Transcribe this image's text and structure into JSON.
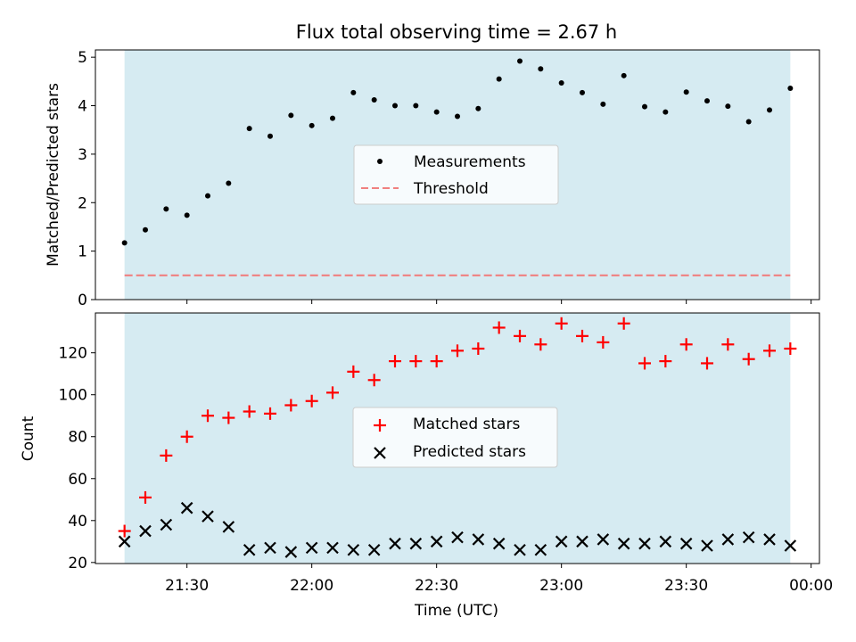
{
  "chart_data": [
    {
      "type": "scatter",
      "title": "Flux total observing time = 2.67 h",
      "ylabel": "Matched/Predicted stars",
      "xlim": [
        "21:08",
        "00:02"
      ],
      "ylim": [
        0,
        5.15
      ],
      "yticks": [
        "0",
        "1",
        "2",
        "3",
        "4",
        "5"
      ],
      "shaded_span": [
        "21:15",
        "23:55"
      ],
      "legend": {
        "position": "center",
        "entries": [
          "Measurements",
          "Threshold"
        ]
      },
      "series": [
        {
          "name": "Measurements",
          "marker": "dot",
          "color": "#000000",
          "x": [
            "21:15",
            "21:20",
            "21:25",
            "21:30",
            "21:35",
            "21:40",
            "21:45",
            "21:50",
            "21:55",
            "22:00",
            "22:05",
            "22:10",
            "22:15",
            "22:20",
            "22:25",
            "22:30",
            "22:35",
            "22:40",
            "22:45",
            "22:50",
            "22:55",
            "23:00",
            "23:05",
            "23:10",
            "23:15",
            "23:20",
            "23:25",
            "23:30",
            "23:35",
            "23:40",
            "23:45",
            "23:50",
            "23:55"
          ],
          "y": [
            1.17,
            1.44,
            1.87,
            1.74,
            2.14,
            2.4,
            3.53,
            3.37,
            3.8,
            3.59,
            3.74,
            4.27,
            4.12,
            4.0,
            4.0,
            3.87,
            3.78,
            3.94,
            4.55,
            4.92,
            4.76,
            4.47,
            4.27,
            4.03,
            4.62,
            3.98,
            3.87,
            4.28,
            4.1,
            3.99,
            3.67,
            3.91,
            4.36
          ]
        },
        {
          "name": "Threshold",
          "type": "line",
          "style": "dashed",
          "color": "#f08080",
          "x": [
            "21:15",
            "23:55"
          ],
          "y": [
            0.5,
            0.5
          ]
        }
      ]
    },
    {
      "type": "scatter",
      "xlabel": "Time (UTC)",
      "ylabel": "Count",
      "xlim": [
        "21:08",
        "00:02"
      ],
      "ylim": [
        19.5,
        139
      ],
      "xticks": [
        "21:30",
        "22:00",
        "22:30",
        "23:00",
        "23:30",
        "00:00"
      ],
      "yticks": [
        "20",
        "40",
        "60",
        "80",
        "100",
        "120"
      ],
      "shaded_span": [
        "21:15",
        "23:55"
      ],
      "legend": {
        "position": "center",
        "entries": [
          "Matched stars",
          "Predicted stars"
        ]
      },
      "series": [
        {
          "name": "Matched stars",
          "marker": "+",
          "color": "#ff0000",
          "x": [
            "21:15",
            "21:20",
            "21:25",
            "21:30",
            "21:35",
            "21:40",
            "21:45",
            "21:50",
            "21:55",
            "22:00",
            "22:05",
            "22:10",
            "22:15",
            "22:20",
            "22:25",
            "22:30",
            "22:35",
            "22:40",
            "22:45",
            "22:50",
            "22:55",
            "23:00",
            "23:05",
            "23:10",
            "23:15",
            "23:20",
            "23:25",
            "23:30",
            "23:35",
            "23:40",
            "23:45",
            "23:50",
            "23:55"
          ],
          "y": [
            35,
            51,
            71,
            80,
            90,
            89,
            92,
            91,
            95,
            97,
            101,
            111,
            107,
            116,
            116,
            116,
            121,
            122,
            132,
            128,
            124,
            134,
            128,
            125,
            134,
            115,
            116,
            124,
            115,
            124,
            117,
            121,
            122
          ]
        },
        {
          "name": "Predicted stars",
          "marker": "x",
          "color": "#000000",
          "x": [
            "21:15",
            "21:20",
            "21:25",
            "21:30",
            "21:35",
            "21:40",
            "21:45",
            "21:50",
            "21:55",
            "22:00",
            "22:05",
            "22:10",
            "22:15",
            "22:20",
            "22:25",
            "22:30",
            "22:35",
            "22:40",
            "22:45",
            "22:50",
            "22:55",
            "23:00",
            "23:05",
            "23:10",
            "23:15",
            "23:20",
            "23:25",
            "23:30",
            "23:35",
            "23:40",
            "23:45",
            "23:50",
            "23:55"
          ],
          "y": [
            30,
            35,
            38,
            46,
            42,
            37,
            26,
            27,
            25,
            27,
            27,
            26,
            26,
            29,
            29,
            30,
            32,
            31,
            29,
            26,
            26,
            30,
            30,
            31,
            29,
            29,
            30,
            29,
            28,
            31,
            32,
            31,
            28
          ]
        }
      ]
    }
  ]
}
